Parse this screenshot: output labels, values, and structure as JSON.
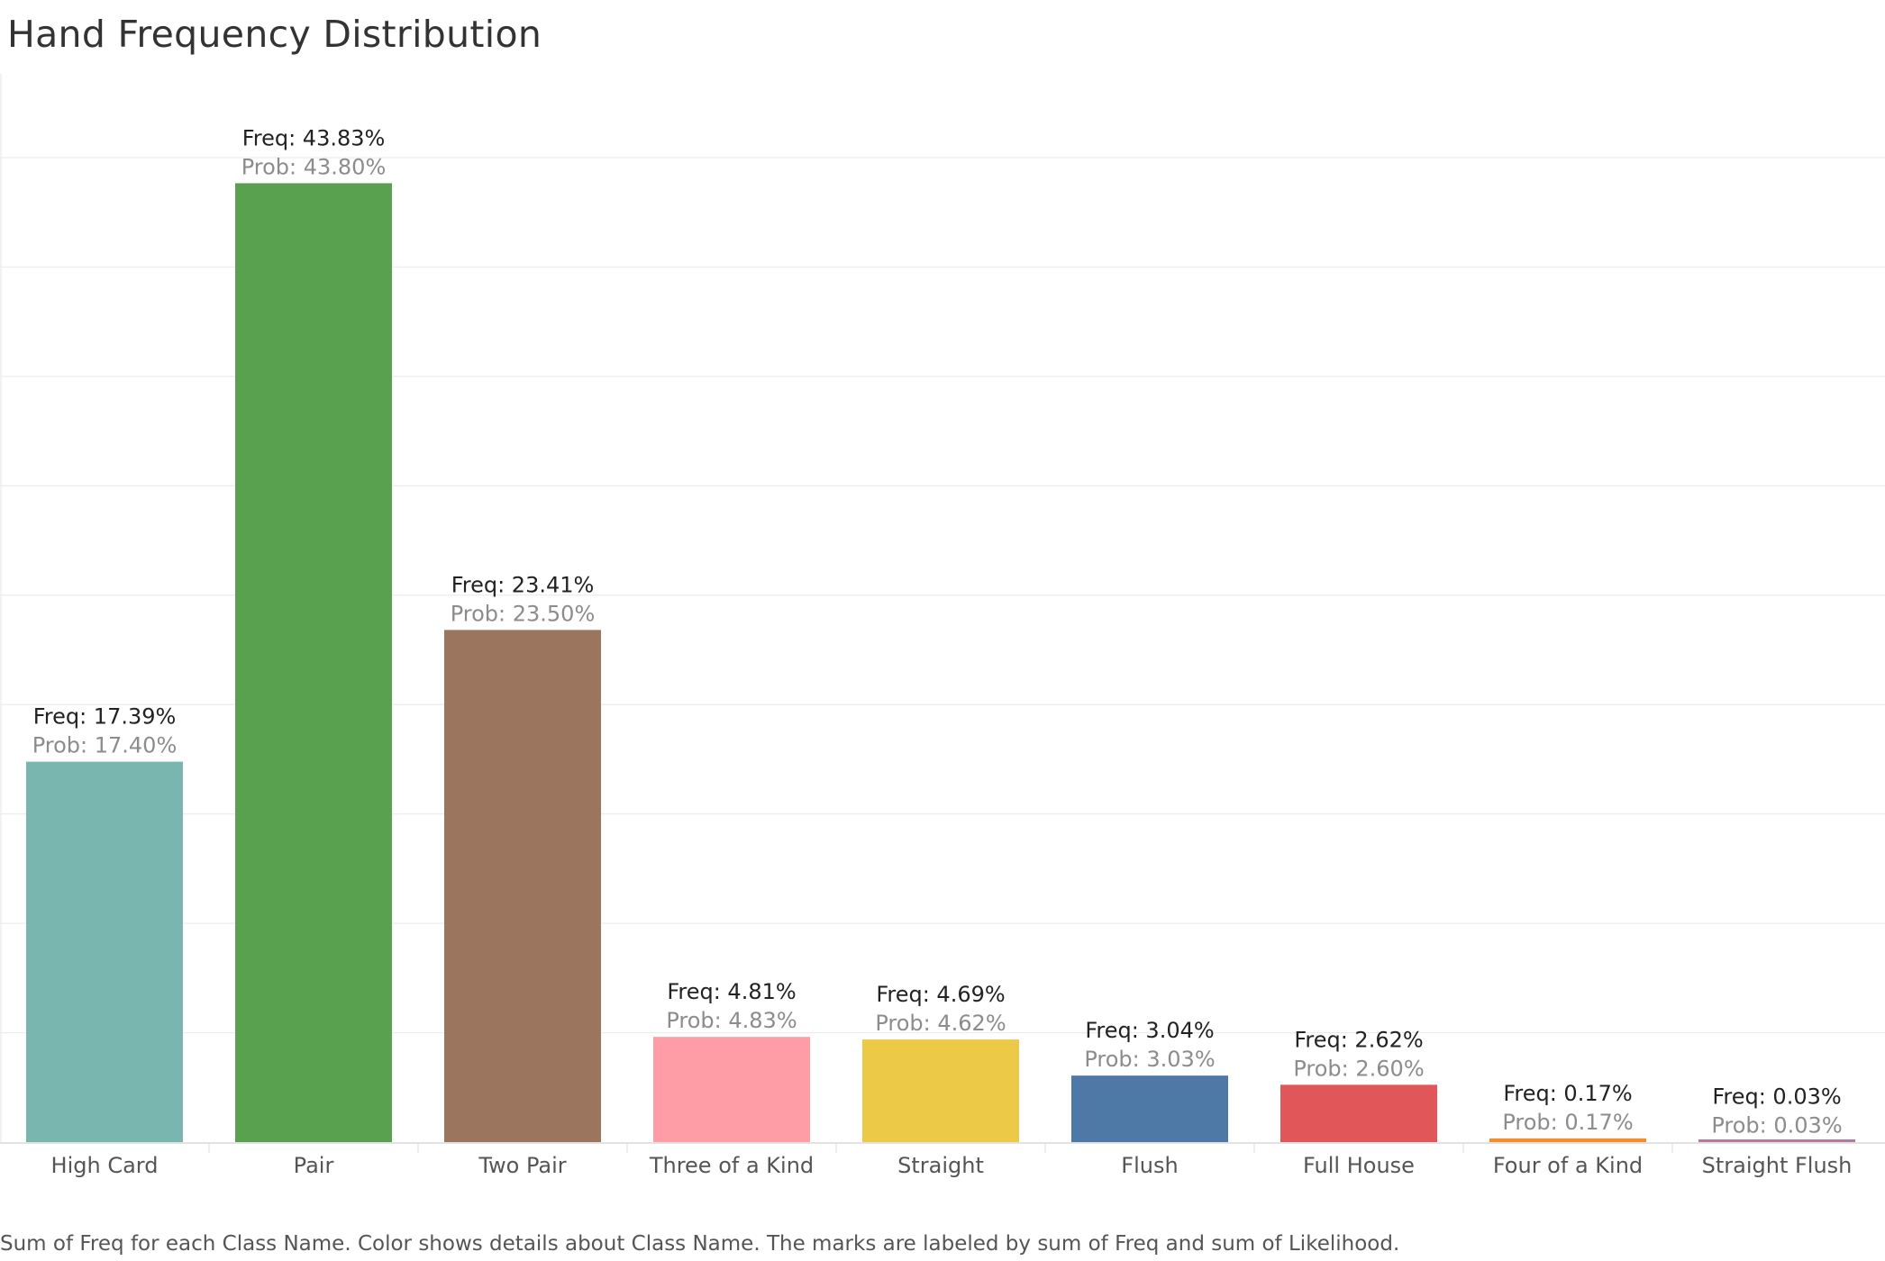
{
  "title": "Hand Frequency Distribution",
  "caption": "Sum of Freq for each Class Name.  Color shows details about Class Name.  The marks are labeled by sum of Freq and sum of Likelihood.",
  "chart_data": {
    "type": "bar",
    "categories": [
      "High Card",
      "Pair",
      "Two Pair",
      "Three of a Kind",
      "Straight",
      "Flush",
      "Full House",
      "Four of a Kind",
      "Straight Flush"
    ],
    "series": [
      {
        "values": [
          17.39,
          43.83,
          23.41,
          4.81,
          4.69,
          3.04,
          2.62,
          0.17,
          0.03
        ],
        "labels": [
          "Freq: 17.39%",
          "Freq: 43.83%",
          "Freq: 23.41%",
          "Freq: 4.81%",
          "Freq: 4.69%",
          "Freq: 3.04%",
          "Freq: 2.62%",
          "Freq: 0.17%",
          "Freq: 0.03%"
        ]
      },
      {
        "values": [
          17.4,
          43.8,
          23.5,
          4.83,
          4.62,
          3.03,
          2.6,
          0.17,
          0.03
        ],
        "labels": [
          "Prob: 17.40%",
          "Prob: 43.80%",
          "Prob: 23.50%",
          "Prob: 4.83%",
          "Prob: 4.62%",
          "Prob: 3.03%",
          "Prob: 2.60%",
          "Prob: 0.17%",
          "Prob: 0.03%"
        ]
      }
    ],
    "colors": [
      "#7ab6b0",
      "#59a14f",
      "#9c755f",
      "#ff9da7",
      "#edc948",
      "#4e79a7",
      "#e15759",
      "#f28e2b",
      "#b07aa1"
    ],
    "ylim": [
      0,
      48.5
    ],
    "grid": true,
    "xlabel": "",
    "ylabel": ""
  }
}
